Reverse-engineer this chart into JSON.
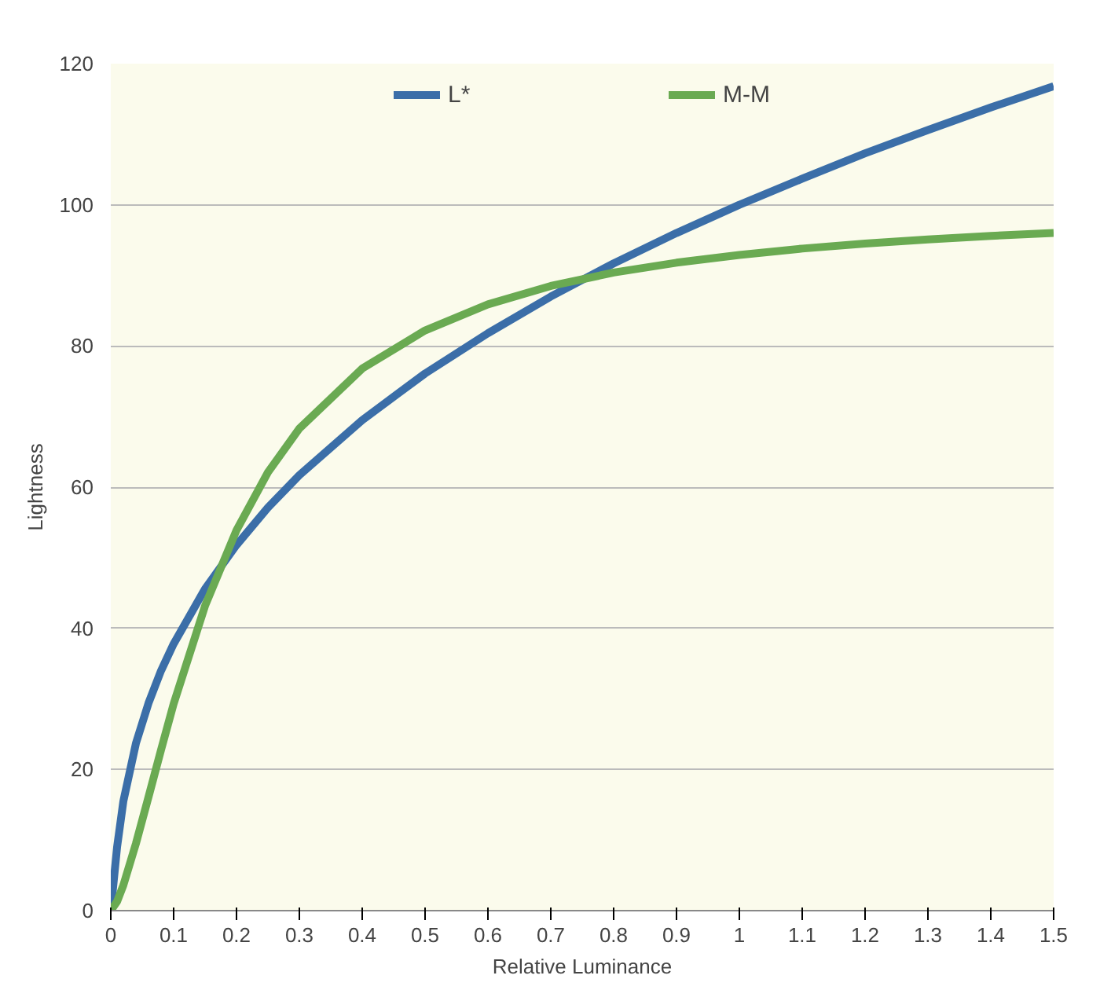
{
  "chart_data": {
    "type": "line",
    "xlabel": "Relative Luminance",
    "ylabel": "Lightness",
    "x": [
      0,
      0.01,
      0.02,
      0.04,
      0.06,
      0.08,
      0.1,
      0.15,
      0.2,
      0.25,
      0.3,
      0.4,
      0.5,
      0.6,
      0.7,
      0.8,
      0.9,
      1.0,
      1.1,
      1.2,
      1.3,
      1.4,
      1.5
    ],
    "series": [
      {
        "name": "L*",
        "color": "#3b6ea8",
        "values": [
          0,
          9,
          15.5,
          23.7,
          29.4,
          34,
          37.8,
          45.6,
          51.8,
          57.1,
          61.7,
          69.5,
          76.1,
          81.8,
          87,
          91.7,
          96,
          100,
          103.7,
          107.3,
          110.6,
          113.8,
          116.8
        ]
      },
      {
        "name": "M-M",
        "color": "#6aaa52",
        "values": [
          0,
          1.3,
          3.6,
          9.5,
          16.1,
          22.8,
          29.3,
          43.2,
          53.9,
          62.1,
          68.3,
          76.8,
          82.2,
          85.9,
          88.5,
          90.4,
          91.8,
          92.9,
          93.8,
          94.5,
          95.1,
          95.6,
          96
        ]
      }
    ],
    "xlim": [
      0,
      1.5
    ],
    "ylim": [
      0,
      120
    ],
    "xticks": [
      0,
      0.1,
      0.2,
      0.3,
      0.4,
      0.5,
      0.6,
      0.7,
      0.8,
      0.9,
      1,
      1.1,
      1.2,
      1.3,
      1.4,
      1.5
    ],
    "yticks": [
      0,
      20,
      40,
      60,
      80,
      100,
      120
    ],
    "grid": "y",
    "legend": "top",
    "marker": "none",
    "line_style": "solid"
  }
}
